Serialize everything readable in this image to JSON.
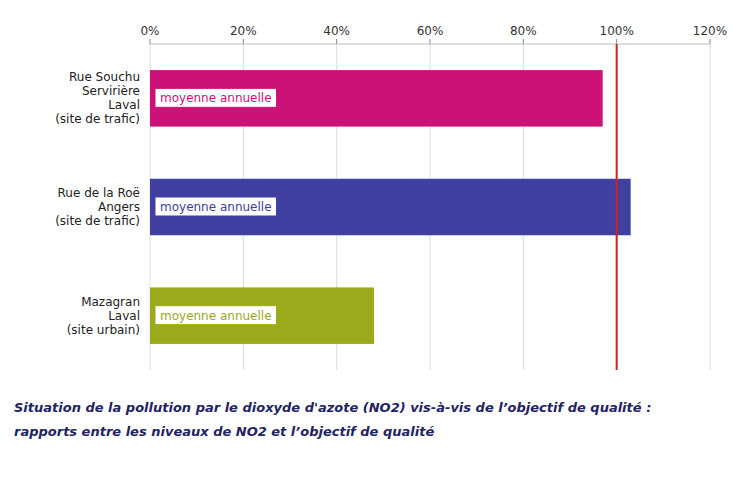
{
  "chart_data": {
    "type": "bar",
    "orientation": "horizontal",
    "title": "Situation  de la pollution par  le dioxyde d'azote (NO2)  vis-à-vis de l’objectif de qualité :",
    "subtitle": "rapports  entre les niveaux de NO2 et l’objectif de qualité",
    "categories": [
      "Mazagran\nLaval\n(site urbain)",
      "Rue de la Roë\nAngers\n(site de trafic)",
      "Rue Souchu\nServirière\nLaval\n(site de trafic)"
    ],
    "values": [
      48,
      103,
      97
    ],
    "colors": [
      "#9aaa1a",
      "#4040a0",
      "#cc1177"
    ],
    "xlim": [
      0,
      120
    ],
    "xticks": [
      {
        "value": 0,
        "label": "0%"
      },
      {
        "value": 20,
        "label": "20%"
      },
      {
        "value": 40,
        "label": "40%"
      },
      {
        "value": 60,
        "label": "60%"
      },
      {
        "value": 80,
        "label": "80%"
      },
      {
        "value": 100,
        "label": "100%"
      },
      {
        "value": 120,
        "label": "120%"
      }
    ],
    "grid": true,
    "annotations": [
      {
        "text": "moyenne annuelle",
        "color": "#9aaa1a"
      },
      {
        "text": "moyenne annuelle",
        "color": "#4040a0"
      },
      {
        "text": "moyenne annuelle",
        "color": "#cc1177"
      },
      {
        "x": 100,
        "color": "#cc2222"
      }
    ]
  }
}
